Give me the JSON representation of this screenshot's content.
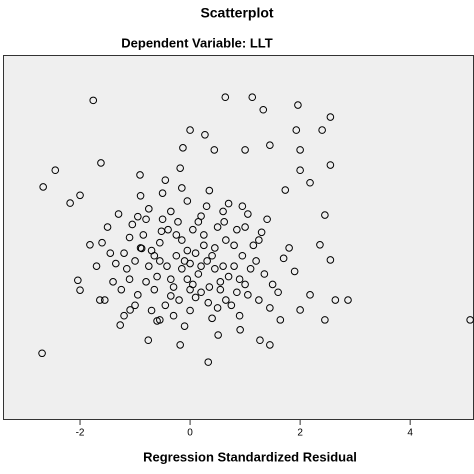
{
  "chart_data": {
    "type": "scatter",
    "title": "Scatterplot",
    "subtitle": "Dependent Variable: LLT",
    "x_label": "Regression Standardized Residual",
    "xlim": [
      -3.4,
      5.16
    ],
    "ylim": [
      -3.5,
      3.5
    ],
    "xticks": [
      -2,
      0,
      2,
      4
    ],
    "background": "#efefef",
    "marker_color": "#000000",
    "x": [
      -1.76,
      0.64,
      1.13,
      1.33,
      1.96,
      2.55,
      2.4,
      1.93,
      0,
      0.27,
      -0.13,
      0.44,
      1.0,
      1.45,
      2.0,
      2.55,
      -2.45,
      -1.62,
      -0.18,
      -2.67,
      -2.0,
      -2.18,
      -0.91,
      2.0,
      2.18,
      1.73,
      2.45,
      2.36,
      2.55,
      2.87,
      2.64,
      2.18,
      2.0,
      2.45,
      1.45,
      1.27,
      0.51,
      0.33,
      -0.18,
      -0.76,
      -2.69,
      5.09,
      -2.0,
      -2.04,
      -1.82,
      -1.64,
      -1.27,
      -1.09,
      1.64,
      0.91,
      -0.55,
      -0.52,
      0.31,
      -0.88,
      0.05,
      0.62,
      -0.35,
      1.1,
      -1.2,
      0.2,
      -0.6,
      0.85,
      -0.15,
      0.45,
      -1.05,
      0.0,
      1.3,
      -0.75,
      0.33,
      -0.42,
      0.95,
      -1.4,
      0.7,
      -0.22,
      0.15,
      -0.95,
      1.5,
      -0.05,
      0.55,
      -1.3,
      0.25,
      -0.65,
      1.05,
      -0.3,
      0.8,
      -1.15,
      0.4,
      -0.5,
      1.25,
      -0.85,
      0.1,
      -1.6,
      0.6,
      -0.1,
      1.7,
      -0.7,
      0.35,
      -0.25,
      0.9,
      -1.0,
      0.05,
      -0.45,
      1.4,
      -1.25,
      0.5,
      -0.15,
      0.75,
      -0.55,
      1.15,
      -0.9,
      0.2,
      -1.5,
      0.65,
      -0.35,
      0.0,
      1.0,
      -0.8,
      0.45,
      -0.2,
      1.6,
      -1.1,
      0.3,
      -0.6,
      0.85,
      -0.05,
      -1.35,
      1.2,
      -0.4,
      0.55,
      -0.75,
      0.15,
      -1.7,
      0.95,
      -0.3,
      0.4,
      -1.0,
      1.35,
      -0.5,
      0.1,
      -0.9,
      0.7,
      -0.15,
      1.8,
      -1.2,
      0.25,
      -0.65,
      1.05,
      -0.05,
      0.6,
      -1.45,
      0.8,
      -0.35,
      1.45,
      -0.8,
      0.0,
      0.5,
      -0.55,
      1.0,
      -1.1,
      0.2,
      -0.25,
      1.9,
      -1.55,
      0.65,
      -0.45,
      0.35,
      -0.95,
      1.25,
      -0.1,
      0.9,
      -0.7
    ],
    "values": [
      2.63,
      2.69,
      2.69,
      2.45,
      2.54,
      2.31,
      2.06,
      2.06,
      2.06,
      1.97,
      1.72,
      1.68,
      1.68,
      1.77,
      1.68,
      1.39,
      1.29,
      1.43,
      1.33,
      0.97,
      0.81,
      0.66,
      1.2,
      1.29,
      1.05,
      0.91,
      0.43,
      -0.14,
      -0.43,
      -1.2,
      -1.2,
      -1.1,
      -1.39,
      -1.58,
      -2.06,
      -1.97,
      -1.87,
      -2.39,
      -2.06,
      -1.97,
      -2.22,
      -1.58,
      -1.01,
      -0.82,
      -0.14,
      -1.2,
      -1.68,
      -1.39,
      -1.58,
      -1.77,
      -1.58,
      0.12,
      -0.45,
      -0.21,
      -0.9,
      0.3,
      -1.12,
      -0.6,
      -0.3,
      0.41,
      -0.75,
      -1.05,
      -0.05,
      -0.2,
      0.25,
      -1.4,
      0.1,
      0.55,
      -1.25,
      -0.55,
      -0.35,
      -0.85,
      0.65,
      0.3,
      -0.7,
      -1.1,
      -0.9,
      0.7,
      -0.85,
      0.45,
      0.05,
      -0.35,
      0.45,
      -0.95,
      -0.15,
      -0.6,
      -1.55,
      0.85,
      -1.2,
      0.05,
      -0.3,
      -0.1,
      -0.55,
      -1.7,
      -0.4,
      -1.4,
      0.9,
      -0.35,
      -1.5,
      -0.45,
      0.15,
      -1.3,
      0.35,
      -1.0,
      0.2,
      -0.6,
      -1.3,
      -0.1,
      -0.15,
      0.8,
      -1.05,
      0.2,
      -0.05,
      0.5,
      -0.5,
      -0.9,
      -0.85,
      -0.6,
      -1.2,
      -1.05,
      0.0,
      0.6,
      -1.6,
      0.15,
      -0.8,
      -0.5,
      -0.45,
      0.15,
      -1.0,
      -0.55,
      0.3,
      -0.55,
      0.6,
      -1.5,
      -0.35,
      -1.3,
      -0.7,
      0.35,
      -1.15,
      -0.2,
      -0.75,
      0.95,
      -0.2,
      -1.5,
      -0.15,
      -1.0,
      -1.1,
      -0.25,
      0.5,
      -0.3,
      -0.55,
      -0.8,
      -1.35,
      0.35,
      -1.0,
      -1.35,
      -0.45,
      0.2,
      -0.8,
      -0.55,
      0.05,
      -0.65,
      -1.2,
      -1.2,
      1.1,
      -0.95,
      0.4,
      -0.05,
      -0.45,
      -0.8,
      -0.25
    ]
  }
}
